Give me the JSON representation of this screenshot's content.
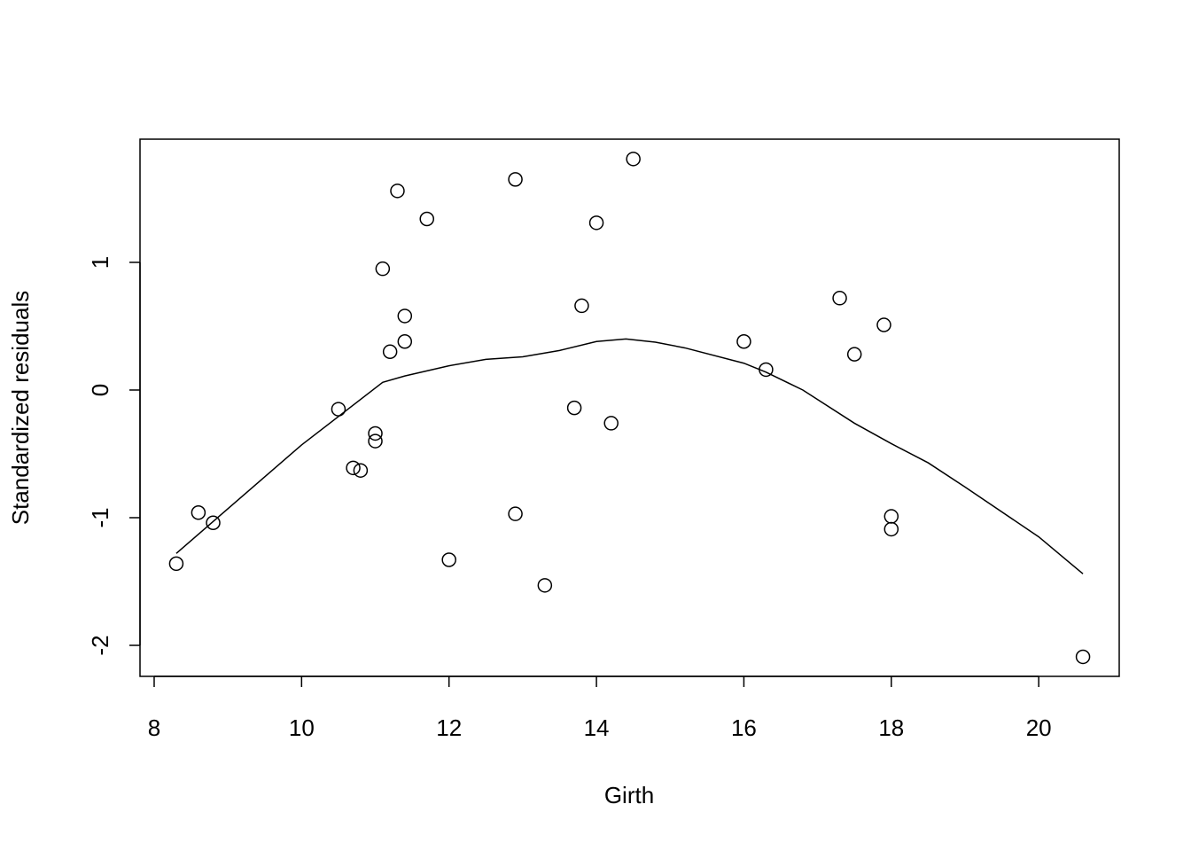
{
  "chart_data": {
    "type": "scatter",
    "x_label": "Girth",
    "y_label": "Standardized residuals",
    "x": [
      8.3,
      8.6,
      8.8,
      10.5,
      10.7,
      10.8,
      11.0,
      11.0,
      11.1,
      11.2,
      11.3,
      11.4,
      11.4,
      11.7,
      12.0,
      12.9,
      12.9,
      13.3,
      13.7,
      13.8,
      14.0,
      14.2,
      14.5,
      16.0,
      16.3,
      17.3,
      17.5,
      17.9,
      18.0,
      18.0,
      20.6
    ],
    "values": [
      -1.36,
      -0.96,
      -1.04,
      -0.15,
      -0.61,
      -0.63,
      -0.34,
      -0.4,
      0.95,
      0.3,
      1.56,
      0.58,
      0.38,
      1.34,
      -1.33,
      1.65,
      -0.97,
      -1.53,
      -0.14,
      0.66,
      1.31,
      -0.26,
      1.81,
      0.38,
      0.16,
      0.72,
      0.28,
      0.51,
      -0.99,
      -1.09,
      -2.09
    ],
    "color": "#000000",
    "smooth": {
      "x": [
        8.3,
        10.0,
        11.1,
        11.4,
        12.0,
        12.5,
        13.0,
        13.5,
        14.0,
        14.4,
        14.8,
        15.2,
        16.0,
        16.3,
        16.8,
        17.5,
        18.0,
        18.5,
        19.0,
        20.0,
        20.6
      ],
      "values": [
        -1.28,
        -0.43,
        0.06,
        0.11,
        0.19,
        0.24,
        0.26,
        0.31,
        0.38,
        0.4,
        0.375,
        0.33,
        0.21,
        0.14,
        0.0,
        -0.26,
        -0.42,
        -0.57,
        -0.76,
        -1.15,
        -1.44
      ],
      "color": "#000000"
    },
    "xlim": [
      7.808,
      21.092
    ],
    "ylim": [
      -2.243,
      1.965
    ],
    "xticks": [
      8,
      10,
      12,
      14,
      16,
      18,
      20
    ],
    "yticks": [
      -2,
      -1,
      0,
      1
    ]
  }
}
